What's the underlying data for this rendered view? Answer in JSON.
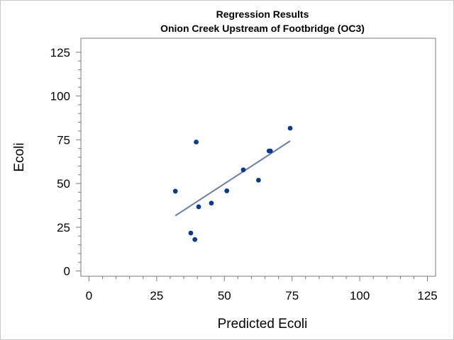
{
  "chart_data": {
    "type": "scatter",
    "title": "Regression Results",
    "subtitle": "Onion Creek Upstream of Footbridge (OC3)",
    "xlabel": "Predicted Ecoli",
    "ylabel": "Ecoli",
    "xlim": [
      -3,
      128
    ],
    "ylim": [
      -3,
      133
    ],
    "xticks": [
      0,
      25,
      50,
      75,
      100,
      125
    ],
    "yticks": [
      0,
      25,
      50,
      75,
      100,
      125
    ],
    "xtick_labels": [
      "0",
      "25",
      "50",
      "75",
      "100",
      "125"
    ],
    "ytick_labels": [
      "0",
      "25",
      "50",
      "75",
      "100",
      "125"
    ],
    "points": [
      {
        "x": 31.9,
        "y": 45.6
      },
      {
        "x": 37.6,
        "y": 21.7
      },
      {
        "x": 39.1,
        "y": 18.0
      },
      {
        "x": 39.6,
        "y": 73.7
      },
      {
        "x": 40.5,
        "y": 36.7
      },
      {
        "x": 45.2,
        "y": 38.8
      },
      {
        "x": 50.9,
        "y": 45.8
      },
      {
        "x": 57.0,
        "y": 57.8
      },
      {
        "x": 62.6,
        "y": 51.9
      },
      {
        "x": 66.5,
        "y": 68.6
      },
      {
        "x": 67.0,
        "y": 68.6
      },
      {
        "x": 74.3,
        "y": 81.6
      }
    ],
    "fit_line": [
      {
        "x": 31.9,
        "y": 31.6
      },
      {
        "x": 74.3,
        "y": 74.3
      }
    ],
    "grid": false,
    "legend": "none",
    "colors": {
      "points": "#0b3a8c",
      "fit_line": "#6a7fa1",
      "axis": "#7a7a7a",
      "frame": "#c8c8c8"
    }
  }
}
